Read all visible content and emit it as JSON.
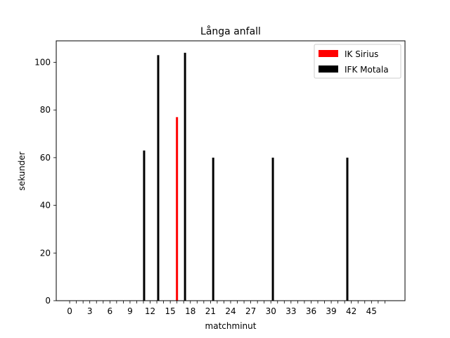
{
  "chart_data": {
    "type": "bar",
    "title": "Långa anfall",
    "xlabel": "matchminut",
    "ylabel": "sekunder",
    "xlim": [
      -2,
      50
    ],
    "ylim": [
      0,
      109
    ],
    "x_ticks": [
      0,
      3,
      6,
      9,
      12,
      15,
      18,
      21,
      24,
      27,
      30,
      33,
      36,
      39,
      42,
      45
    ],
    "x_minor_step": 1,
    "y_ticks": [
      0,
      20,
      40,
      60,
      80,
      100
    ],
    "grid": false,
    "legend_position": "top-right",
    "series": [
      {
        "name": "IK Sirius",
        "color": "#ff0000",
        "points": [
          {
            "x": 16.0,
            "y": 77
          }
        ]
      },
      {
        "name": "IFK Motala",
        "color": "#000000",
        "points": [
          {
            "x": 11.1,
            "y": 63
          },
          {
            "x": 13.2,
            "y": 103
          },
          {
            "x": 17.2,
            "y": 104
          },
          {
            "x": 21.4,
            "y": 60
          },
          {
            "x": 30.3,
            "y": 60
          },
          {
            "x": 41.4,
            "y": 60
          }
        ]
      }
    ]
  }
}
